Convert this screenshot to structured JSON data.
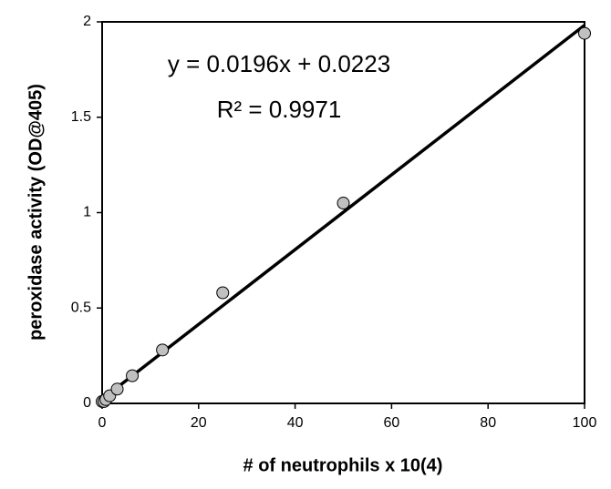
{
  "chart_data": {
    "type": "scatter",
    "x_label": "# of neutrophils x 10(4)",
    "y_label": "peroxidase activity (OD@405)",
    "equation_label": "y = 0.0196x + 0.0223",
    "r_squared_label": "R² = 0.9971",
    "trendline": {
      "slope": 0.0196,
      "intercept": 0.0223,
      "color": "#000000"
    },
    "series": [
      {
        "name": "peroxidase activity",
        "color": "#c0c0c0",
        "x": [
          0,
          0.39,
          0.78,
          1.56,
          3.125,
          6.25,
          12.5,
          25,
          50,
          100
        ],
        "values": [
          0.01,
          0.01,
          0.02,
          0.04,
          0.075,
          0.145,
          0.28,
          0.58,
          1.05,
          1.94
        ]
      }
    ],
    "xlim": [
      0,
      100
    ],
    "xticks": [
      0,
      20,
      40,
      60,
      80,
      100
    ],
    "ylim": [
      0,
      2
    ],
    "yticks": [
      0,
      0.5,
      1,
      1.5,
      2
    ],
    "grid": false
  }
}
